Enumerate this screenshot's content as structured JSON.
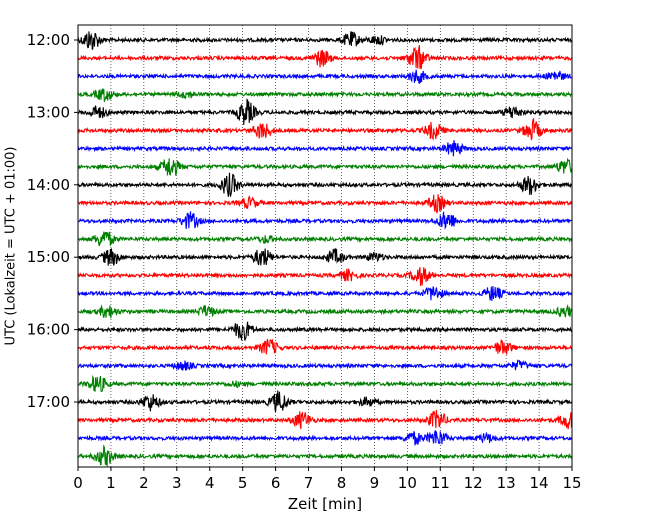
{
  "chart_data": {
    "type": "line",
    "title": "",
    "xlabel": "Zeit  [min]",
    "ylabel": "UTC (Lokalzeit = UTC + 01:00)",
    "xlim": [
      0,
      15
    ],
    "x_ticks": [
      "0",
      "1",
      "2",
      "3",
      "4",
      "5",
      "6",
      "7",
      "8",
      "9",
      "10",
      "11",
      "12",
      "13",
      "14",
      "15"
    ],
    "y_tick_labels": [
      "12:00",
      "13:00",
      "14:00",
      "15:00",
      "16:00",
      "17:00"
    ],
    "grid": "vertical dotted at each minute",
    "trace_interval_minutes": 15,
    "colors": [
      "#000000",
      "#ff0000",
      "#0000ff",
      "#008000"
    ],
    "traces": [
      {
        "start": "12:00",
        "color": "#000000",
        "bursts": [
          [
            0.4,
            10
          ],
          [
            8.3,
            7
          ],
          [
            9.1,
            4
          ]
        ]
      },
      {
        "start": "12:15",
        "color": "#ff0000",
        "bursts": [
          [
            7.4,
            8
          ],
          [
            10.3,
            12
          ]
        ]
      },
      {
        "start": "12:30",
        "color": "#0000ff",
        "bursts": [
          [
            10.3,
            6
          ],
          [
            14.5,
            5
          ]
        ]
      },
      {
        "start": "12:45",
        "color": "#008000",
        "bursts": [
          [
            0.8,
            6
          ],
          [
            3.3,
            3
          ]
        ]
      },
      {
        "start": "13:00",
        "color": "#000000",
        "bursts": [
          [
            0.6,
            6
          ],
          [
            5.1,
            12
          ],
          [
            13.2,
            6
          ]
        ]
      },
      {
        "start": "13:15",
        "color": "#ff0000",
        "bursts": [
          [
            5.6,
            8
          ],
          [
            10.8,
            8
          ],
          [
            13.8,
            10
          ]
        ]
      },
      {
        "start": "13:30",
        "color": "#0000ff",
        "bursts": [
          [
            11.4,
            7
          ]
        ]
      },
      {
        "start": "13:45",
        "color": "#008000",
        "bursts": [
          [
            2.8,
            10
          ],
          [
            14.8,
            7
          ]
        ]
      },
      {
        "start": "14:00",
        "color": "#000000",
        "bursts": [
          [
            4.6,
            11
          ],
          [
            13.7,
            9
          ]
        ]
      },
      {
        "start": "14:15",
        "color": "#ff0000",
        "bursts": [
          [
            5.2,
            5
          ],
          [
            10.9,
            8
          ]
        ]
      },
      {
        "start": "14:30",
        "color": "#0000ff",
        "bursts": [
          [
            3.4,
            8
          ],
          [
            11.2,
            9
          ]
        ]
      },
      {
        "start": "14:45",
        "color": "#008000",
        "bursts": [
          [
            0.8,
            9
          ],
          [
            5.7,
            3
          ]
        ]
      },
      {
        "start": "15:00",
        "color": "#000000",
        "bursts": [
          [
            1.0,
            8
          ],
          [
            5.6,
            9
          ],
          [
            7.8,
            7
          ],
          [
            9.0,
            4
          ]
        ]
      },
      {
        "start": "15:15",
        "color": "#ff0000",
        "bursts": [
          [
            8.2,
            5
          ],
          [
            10.4,
            9
          ]
        ]
      },
      {
        "start": "15:30",
        "color": "#0000ff",
        "bursts": [
          [
            10.8,
            7
          ],
          [
            12.6,
            7
          ]
        ]
      },
      {
        "start": "15:45",
        "color": "#008000",
        "bursts": [
          [
            0.9,
            6
          ],
          [
            3.9,
            5
          ],
          [
            14.8,
            5
          ]
        ]
      },
      {
        "start": "16:00",
        "color": "#000000",
        "bursts": [
          [
            5.0,
            10
          ]
        ]
      },
      {
        "start": "16:15",
        "color": "#ff0000",
        "bursts": [
          [
            5.8,
            8
          ],
          [
            12.9,
            7
          ]
        ]
      },
      {
        "start": "16:30",
        "color": "#0000ff",
        "bursts": [
          [
            3.2,
            4
          ],
          [
            13.4,
            4
          ]
        ]
      },
      {
        "start": "16:45",
        "color": "#008000",
        "bursts": [
          [
            0.6,
            8
          ],
          [
            4.8,
            2
          ]
        ]
      },
      {
        "start": "17:00",
        "color": "#000000",
        "bursts": [
          [
            2.2,
            8
          ],
          [
            6.1,
            10
          ],
          [
            8.8,
            4
          ]
        ]
      },
      {
        "start": "17:15",
        "color": "#ff0000",
        "bursts": [
          [
            6.8,
            8
          ],
          [
            10.9,
            9
          ],
          [
            14.9,
            8
          ]
        ]
      },
      {
        "start": "17:30",
        "color": "#0000ff",
        "bursts": [
          [
            10.2,
            6
          ],
          [
            10.9,
            8
          ],
          [
            12.4,
            4
          ]
        ]
      },
      {
        "start": "17:45",
        "color": "#008000",
        "bursts": [
          [
            0.8,
            9
          ]
        ]
      }
    ]
  }
}
